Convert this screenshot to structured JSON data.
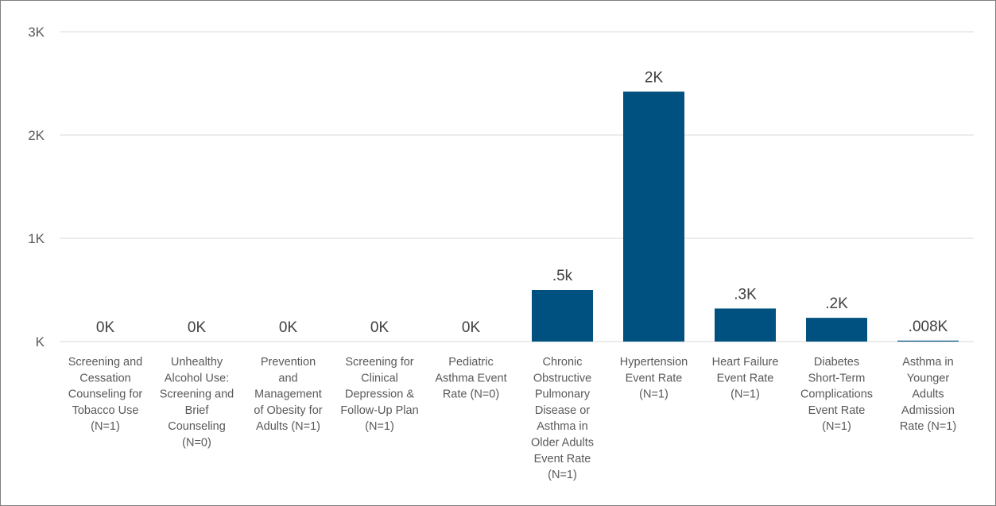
{
  "chart_data": {
    "type": "bar",
    "title": "",
    "xlabel": "",
    "ylabel": "",
    "ylim": [
      0,
      3000
    ],
    "yticks": [
      {
        "value": 0,
        "label": "K"
      },
      {
        "value": 1000,
        "label": "1K"
      },
      {
        "value": 2000,
        "label": "2K"
      },
      {
        "value": 3000,
        "label": "3K"
      }
    ],
    "grid": true,
    "legend": "none",
    "bar_color": "#00517f",
    "categories": [
      [
        "Screening and",
        "Cessation",
        "Counseling for",
        "Tobacco Use",
        "(N=1)"
      ],
      [
        "Unhealthy",
        "Alcohol Use:",
        "Screening and",
        "Brief",
        "Counseling",
        "(N=0)"
      ],
      [
        "Prevention",
        "and",
        "Management",
        "of Obesity for",
        "Adults (N=1)"
      ],
      [
        "Screening for",
        "Clinical",
        "Depression &",
        "Follow-Up Plan",
        "(N=1)"
      ],
      [
        "Pediatric",
        "Asthma Event",
        "Rate (N=0)"
      ],
      [
        "Chronic",
        "Obstructive",
        "Pulmonary",
        "Disease or",
        "Asthma in",
        "Older Adults",
        "Event Rate",
        "(N=1)"
      ],
      [
        "Hypertension",
        "Event Rate",
        "(N=1)"
      ],
      [
        "Heart Failure",
        "Event Rate",
        "(N=1)"
      ],
      [
        "Diabetes",
        "Short-Term",
        "Complications",
        "Event Rate",
        "(N=1)"
      ],
      [
        "Asthma in",
        "Younger",
        "Adults",
        "Admission",
        "Rate (N=1)"
      ]
    ],
    "values": [
      0,
      0,
      0,
      0,
      0,
      500,
      2420,
      320,
      230,
      8
    ],
    "data_labels": [
      "0K",
      "0K",
      "0K",
      "0K",
      "0K",
      ".5k",
      "2K",
      ".3K",
      ".2K",
      ".008K"
    ]
  }
}
